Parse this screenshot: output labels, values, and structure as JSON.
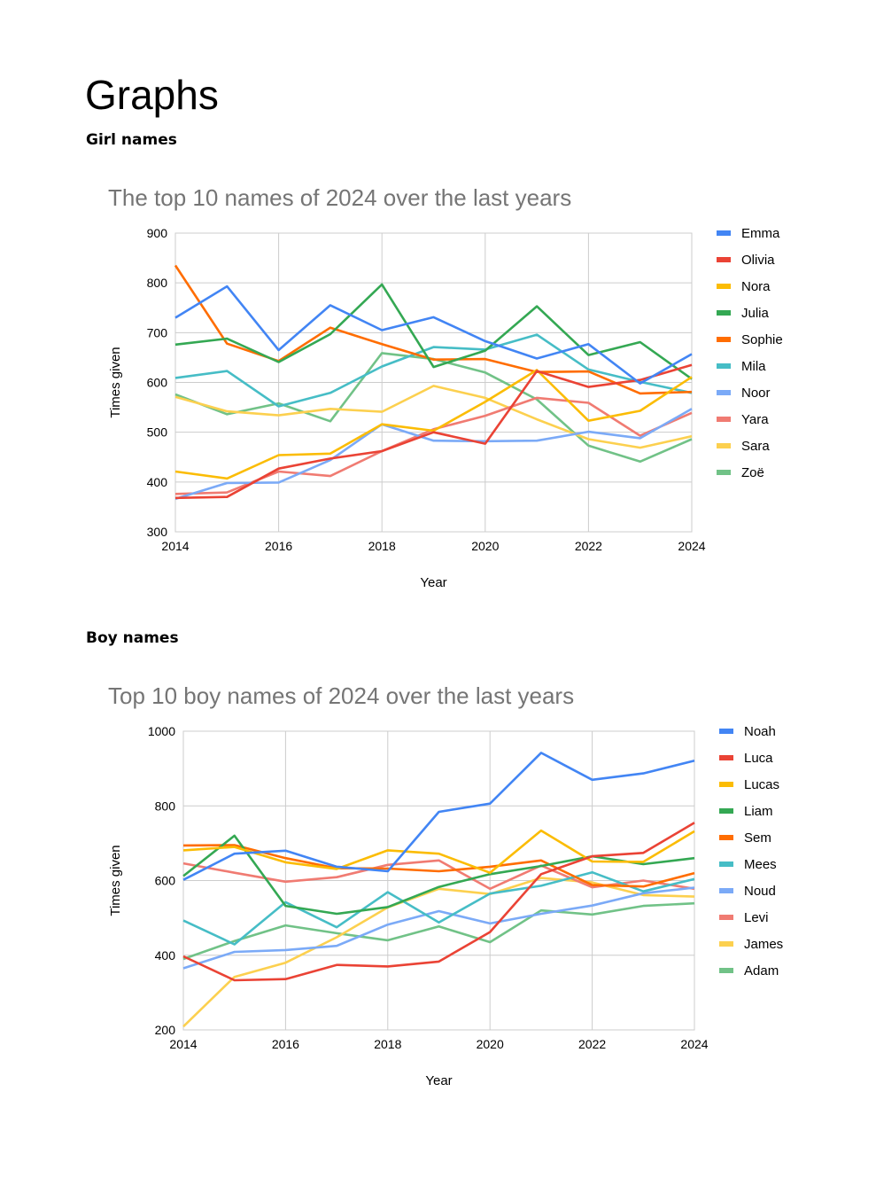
{
  "document": {
    "title": "Graphs",
    "girls_heading": "Girl names",
    "boys_heading": "Boy names"
  },
  "chart_data": [
    {
      "type": "line",
      "title": "The top 10 names of 2024 over the last years",
      "xlabel": "Year",
      "ylabel": "Times given",
      "xlim": [
        2014,
        2024
      ],
      "ylim": [
        300,
        900
      ],
      "xticks": [
        2014,
        2016,
        2018,
        2020,
        2022,
        2024
      ],
      "yticks": [
        300,
        400,
        500,
        600,
        700,
        800,
        900
      ],
      "grid": true,
      "legend": "right",
      "x": [
        2014,
        2015,
        2016,
        2017,
        2018,
        2019,
        2020,
        2021,
        2022,
        2023,
        2024
      ],
      "series": [
        {
          "name": "Emma",
          "color": "#4285F4",
          "values": [
            730,
            793,
            665,
            755,
            705,
            731,
            683,
            648,
            677,
            598,
            657
          ]
        },
        {
          "name": "Olivia",
          "color": "#EA4335",
          "values": [
            368,
            370,
            427,
            447,
            462,
            500,
            477,
            623,
            591,
            605,
            635
          ]
        },
        {
          "name": "Nora",
          "color": "#FBBC04",
          "values": [
            421,
            407,
            454,
            457,
            516,
            503,
            561,
            625,
            523,
            543,
            611
          ]
        },
        {
          "name": "Julia",
          "color": "#34A853",
          "values": [
            676,
            688,
            641,
            697,
            797,
            631,
            664,
            753,
            655,
            681,
            607
          ]
        },
        {
          "name": "Sophie",
          "color": "#FF6D01",
          "values": [
            835,
            678,
            643,
            710,
            677,
            646,
            647,
            621,
            622,
            578,
            581
          ]
        },
        {
          "name": "Mila",
          "color": "#46BDC6",
          "values": [
            609,
            623,
            552,
            579,
            632,
            671,
            666,
            696,
            626,
            601,
            579
          ]
        },
        {
          "name": "Noor",
          "color": "#7BAAF7",
          "values": [
            366,
            398,
            399,
            444,
            516,
            483,
            482,
            483,
            501,
            488,
            547
          ]
        },
        {
          "name": "Yara",
          "color": "#F07B72",
          "values": [
            376,
            379,
            421,
            412,
            462,
            506,
            533,
            569,
            559,
            493,
            539
          ]
        },
        {
          "name": "Sara",
          "color": "#FCD04F",
          "values": [
            571,
            542,
            534,
            547,
            541,
            593,
            569,
            526,
            486,
            469,
            492
          ]
        },
        {
          "name": "Zoë",
          "color": "#71C287",
          "values": [
            576,
            536,
            558,
            522,
            659,
            647,
            620,
            566,
            473,
            441,
            486
          ]
        }
      ]
    },
    {
      "type": "line",
      "title": "Top 10 boy names of 2024 over the last years",
      "xlabel": "Year",
      "ylabel": "Times given",
      "xlim": [
        2014,
        2024
      ],
      "ylim": [
        200,
        1000
      ],
      "xticks": [
        2014,
        2016,
        2018,
        2020,
        2022,
        2024
      ],
      "yticks": [
        200,
        400,
        600,
        800,
        1000
      ],
      "grid": true,
      "legend": "right",
      "x": [
        2014,
        2015,
        2016,
        2017,
        2018,
        2019,
        2020,
        2021,
        2022,
        2023,
        2024
      ],
      "series": [
        {
          "name": "Noah",
          "color": "#4285F4",
          "values": [
            602,
            672,
            680,
            637,
            625,
            784,
            806,
            942,
            870,
            887,
            921
          ]
        },
        {
          "name": "Luca",
          "color": "#EA4335",
          "values": [
            397,
            333,
            336,
            374,
            370,
            383,
            462,
            617,
            665,
            674,
            755
          ]
        },
        {
          "name": "Lucas",
          "color": "#FBBC04",
          "values": [
            681,
            690,
            649,
            631,
            681,
            672,
            621,
            734,
            651,
            650,
            732
          ]
        },
        {
          "name": "Liam",
          "color": "#34A853",
          "values": [
            612,
            720,
            532,
            511,
            529,
            583,
            617,
            639,
            665,
            644,
            660
          ]
        },
        {
          "name": "Sem",
          "color": "#FF6D01",
          "values": [
            694,
            695,
            660,
            633,
            632,
            625,
            637,
            654,
            588,
            584,
            620
          ]
        },
        {
          "name": "Mees",
          "color": "#46BDC6",
          "values": [
            493,
            429,
            542,
            475,
            569,
            488,
            565,
            586,
            622,
            571,
            604
          ]
        },
        {
          "name": "Noud",
          "color": "#7BAAF7",
          "values": [
            365,
            409,
            414,
            425,
            482,
            518,
            485,
            511,
            533,
            566,
            581
          ]
        },
        {
          "name": "Levi",
          "color": "#F07B72",
          "values": [
            646,
            621,
            597,
            609,
            642,
            654,
            578,
            640,
            582,
            600,
            578
          ]
        },
        {
          "name": "James",
          "color": "#FCD04F",
          "values": [
            209,
            342,
            380,
            448,
            528,
            578,
            564,
            607,
            595,
            561,
            557
          ]
        },
        {
          "name": "Adam",
          "color": "#71C287",
          "values": [
            390,
            438,
            480,
            459,
            440,
            477,
            435,
            520,
            509,
            532,
            539
          ]
        }
      ]
    }
  ]
}
